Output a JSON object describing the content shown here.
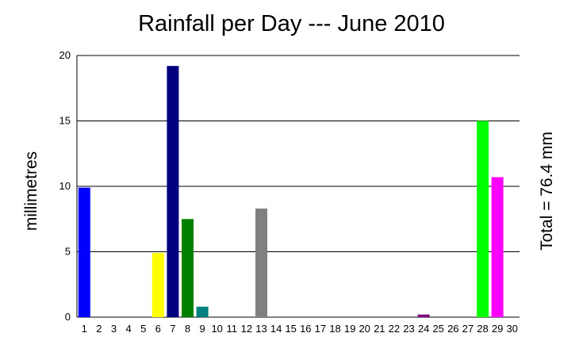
{
  "chart_data": {
    "type": "bar",
    "title": "Rainfall per Day --- June 2010",
    "xlabel": "",
    "ylabel": "millimetres",
    "annotation": "Total = 76.4 mm",
    "ylim": [
      0,
      20
    ],
    "yticks": [
      0,
      5,
      10,
      15,
      20
    ],
    "grid": true,
    "categories": [
      "1",
      "2",
      "3",
      "4",
      "5",
      "6",
      "7",
      "8",
      "9",
      "10",
      "11",
      "12",
      "13",
      "14",
      "15",
      "16",
      "17",
      "18",
      "19",
      "20",
      "21",
      "22",
      "23",
      "24",
      "25",
      "26",
      "27",
      "28",
      "29",
      "30"
    ],
    "values": [
      9.9,
      0,
      0,
      0,
      0,
      4.9,
      19.2,
      7.5,
      0.8,
      0,
      0,
      0,
      8.3,
      0,
      0,
      0,
      0,
      0,
      0,
      0,
      0,
      0,
      0,
      0.2,
      0,
      0,
      0,
      15.0,
      10.7,
      0
    ],
    "colors": [
      "#0000ff",
      "#0000ff",
      "#0000ff",
      "#0000ff",
      "#0000ff",
      "#ffff00",
      "#000080",
      "#008000",
      "#008080",
      "#008080",
      "#008080",
      "#008080",
      "#808080",
      "#808080",
      "#808080",
      "#808080",
      "#808080",
      "#808080",
      "#808080",
      "#808080",
      "#808080",
      "#808080",
      "#808080",
      "#800080",
      "#800080",
      "#800080",
      "#800080",
      "#00ff00",
      "#ff00ff",
      "#ff00ff"
    ]
  }
}
